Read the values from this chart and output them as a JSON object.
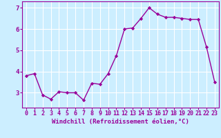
{
  "x": [
    0,
    1,
    2,
    3,
    4,
    5,
    6,
    7,
    8,
    9,
    10,
    11,
    12,
    13,
    14,
    15,
    16,
    17,
    18,
    19,
    20,
    21,
    22,
    23
  ],
  "y": [
    3.8,
    3.9,
    2.9,
    2.7,
    3.05,
    3.0,
    3.0,
    2.65,
    3.45,
    3.4,
    3.9,
    4.75,
    6.0,
    6.05,
    6.5,
    7.0,
    6.7,
    6.55,
    6.55,
    6.5,
    6.45,
    6.45,
    5.15,
    3.5
  ],
  "line_color": "#990099",
  "marker": "D",
  "markersize": 2.2,
  "linewidth": 1.0,
  "bg_color": "#cceeff",
  "grid_color": "#ffffff",
  "xlabel": "Windchill (Refroidissement éolien,°C)",
  "xlim": [
    -0.5,
    23.5
  ],
  "ylim": [
    2.3,
    7.3
  ],
  "yticks": [
    3,
    4,
    5,
    6,
    7
  ],
  "xtick_labels": [
    "0",
    "1",
    "2",
    "3",
    "4",
    "5",
    "6",
    "7",
    "8",
    "9",
    "10",
    "11",
    "12",
    "13",
    "14",
    "15",
    "16",
    "17",
    "18",
    "19",
    "20",
    "21",
    "22",
    "23"
  ],
  "xlabel_fontsize": 6.5,
  "tick_fontsize": 6.0
}
